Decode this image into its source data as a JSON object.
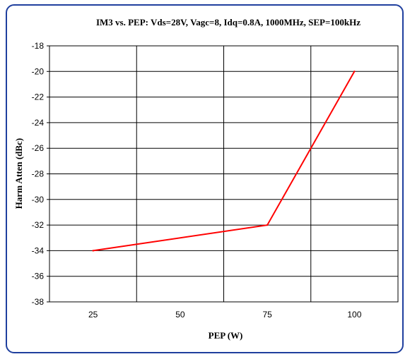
{
  "chart_data": {
    "type": "line",
    "title": "IM3 vs. PEP: Vds=28V, Vagc=8, Idq=0.8A, 1000MHz, SEP=100kHz",
    "xlabel": "PEP (W)",
    "ylabel": "Harm Atten (dBc)",
    "categories": [
      "25",
      "50",
      "75",
      "100"
    ],
    "ylim": [
      -38,
      -18
    ],
    "yticks": [
      "-18",
      "-20",
      "-22",
      "-24",
      "-26",
      "-28",
      "-30",
      "-32",
      "-34",
      "-36",
      "-38"
    ],
    "grid": true,
    "series": [
      {
        "color": "#ff0000",
        "x": [
          25,
          75,
          100
        ],
        "y": [
          -34,
          -32,
          -20
        ]
      }
    ]
  }
}
